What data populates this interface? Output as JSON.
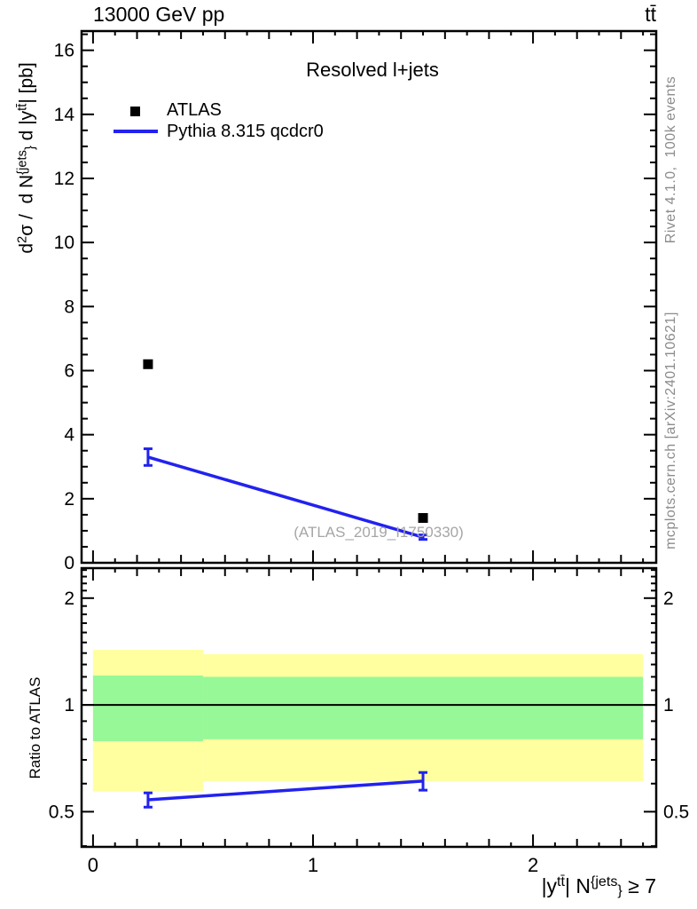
{
  "header": {
    "beam": "13000 GeV pp",
    "process": "tt̄"
  },
  "side_notes": {
    "top": "Rivet 4.1.0,  100k events",
    "bottom": "mcplots.cern.ch [arXiv:2401.10621]"
  },
  "legend": [
    {
      "label": "ATLAS",
      "marker": "filled-square",
      "color": "#000000"
    },
    {
      "label": "Pythia 8.315 qcdcr0",
      "marker": "line",
      "color": "#2222ef"
    }
  ],
  "axes": {
    "ratio_ylabel": "Ratio to ATLAS",
    "ylabel_segments": [
      {
        "t": "d"
      },
      {
        "t": "2",
        "p": "sup"
      },
      {
        "t": "σ /  d N"
      },
      {
        "t": "{jets",
        "p": "sup"
      },
      {
        "t": "}",
        "p": "sub"
      },
      {
        "t": " d |y"
      },
      {
        "t": "tt̄",
        "p": "sup"
      },
      {
        "t": "| [pb]"
      }
    ],
    "xlabel_segments": [
      {
        "t": "|y"
      },
      {
        "t": "tt̄",
        "p": "sup"
      },
      {
        "t": "| N"
      },
      {
        "t": "{jets",
        "p": "sup"
      },
      {
        "t": "}",
        "p": "sub"
      },
      {
        "t": " ≥ 7"
      }
    ]
  },
  "colors": {
    "mc": "#2222ef",
    "data": "#000000",
    "band_yellow": "#ffffa0",
    "band_green": "#97f897",
    "gray_note": "#8c8c8c",
    "watermark": "#a6a6a6"
  },
  "chart_data": [
    {
      "type": "scatter",
      "panel": "main",
      "title": "Resolved l+jets",
      "watermark": "(ATLAS_2019_I1750330)",
      "ylabel": "d2σ / d N{jets} d |ytt| [pb]",
      "xlabel": "",
      "xlim": [
        -0.052,
        2.56
      ],
      "ylim": [
        0,
        16.6
      ],
      "ytick_minor_step": 0.5,
      "ytick_major_step": 2,
      "ytick_labels": [
        {
          "value": 0,
          "label": "0"
        },
        {
          "value": 2,
          "label": "2"
        },
        {
          "value": 4,
          "label": "4"
        },
        {
          "value": 6,
          "label": "6"
        },
        {
          "value": 8,
          "label": "8"
        },
        {
          "value": 10,
          "label": "10"
        },
        {
          "value": 12,
          "label": "12"
        },
        {
          "value": 14,
          "label": "14"
        },
        {
          "value": 16,
          "label": "16"
        }
      ],
      "series": [
        {
          "name": "ATLAS",
          "type": "points",
          "marker": "filled-square",
          "color": "#000000",
          "points": [
            {
              "x": 0.25,
              "y": 6.2
            },
            {
              "x": 1.5,
              "y": 1.4
            }
          ]
        },
        {
          "name": "Pythia 8.315 qcdcr0",
          "type": "line-with-errors",
          "color": "#2222ef",
          "points": [
            {
              "x": 0.25,
              "y": 3.3,
              "yerr": 0.26
            },
            {
              "x": 1.5,
              "y": 0.8,
              "yerr": 0.07
            }
          ]
        }
      ]
    },
    {
      "type": "ratio-line",
      "panel": "ratio",
      "ylabel": "Ratio to ATLAS",
      "yscale": "log",
      "xlim": [
        -0.052,
        2.56
      ],
      "ylim": [
        0.398,
        2.43
      ],
      "reference_line": 1,
      "ytick_labels": [
        {
          "value": 0.5,
          "label": "0.5"
        },
        {
          "value": 1,
          "label": "1"
        },
        {
          "value": 2,
          "label": "2"
        }
      ],
      "xtick_labels": [
        {
          "value": 0,
          "label": "0"
        },
        {
          "value": 1,
          "label": "1"
        },
        {
          "value": 2,
          "label": "2"
        }
      ],
      "xtick_minor_step": 0.1,
      "bands": [
        {
          "x0": 0.0,
          "x1": 0.5,
          "yellow": [
            0.57,
            1.43
          ],
          "green": [
            0.79,
            1.21
          ]
        },
        {
          "x0": 0.5,
          "x1": 2.5,
          "yellow": [
            0.61,
            1.39
          ],
          "green": [
            0.8,
            1.2
          ]
        }
      ],
      "series": [
        {
          "name": "Pythia 8.315 qcdcr0 / ATLAS",
          "color": "#2222ef",
          "points": [
            {
              "x": 0.25,
              "y": 0.54,
              "yerr": 0.025
            },
            {
              "x": 1.5,
              "y": 0.61,
              "yerr": 0.035
            }
          ]
        }
      ]
    }
  ]
}
